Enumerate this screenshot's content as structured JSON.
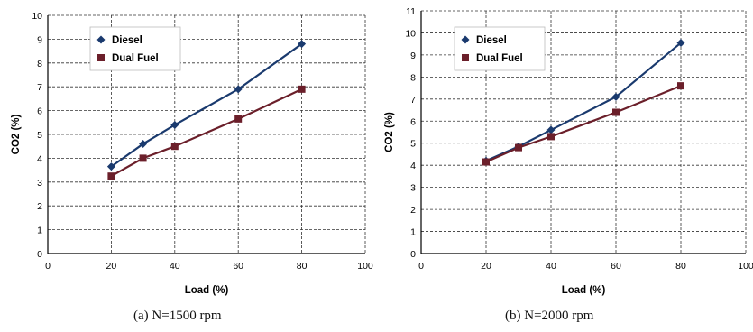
{
  "chart_data": [
    {
      "type": "line",
      "caption": "(a) N=1500 rpm",
      "xlabel": "Load (%)",
      "ylabel": "CO2 (%)",
      "xlim": [
        0,
        100
      ],
      "ylim": [
        0,
        10
      ],
      "xticks": [
        0,
        20,
        40,
        60,
        80,
        100
      ],
      "yticks": [
        0,
        1,
        2,
        3,
        4,
        5,
        6,
        7,
        8,
        9,
        10
      ],
      "grid": true,
      "legend_position": "top-left",
      "x": [
        20,
        30,
        40,
        60,
        80
      ],
      "series": [
        {
          "name": "Diesel",
          "values": [
            3.65,
            4.6,
            5.4,
            6.9,
            8.8
          ],
          "color": "#1a3a6e",
          "marker": "diamond"
        },
        {
          "name": "Dual Fuel",
          "values": [
            3.25,
            4.0,
            4.5,
            5.65,
            6.9
          ],
          "color": "#6b1f2a",
          "marker": "square"
        }
      ]
    },
    {
      "type": "line",
      "caption": "(b) N=2000 rpm",
      "xlabel": "Load (%)",
      "ylabel": "CO2 (%)",
      "xlim": [
        0,
        100
      ],
      "ylim": [
        0,
        11
      ],
      "xticks": [
        0,
        20,
        40,
        60,
        80,
        100
      ],
      "yticks": [
        0,
        1,
        2,
        3,
        4,
        5,
        6,
        7,
        8,
        9,
        10,
        11
      ],
      "grid": true,
      "legend_position": "top-left",
      "x": [
        20,
        30,
        40,
        60,
        80
      ],
      "series": [
        {
          "name": "Diesel",
          "values": [
            4.2,
            4.85,
            5.6,
            7.1,
            9.55
          ],
          "color": "#1a3a6e",
          "marker": "diamond"
        },
        {
          "name": "Dual Fuel",
          "values": [
            4.15,
            4.8,
            5.3,
            6.4,
            7.6
          ],
          "color": "#6b1f2a",
          "marker": "square"
        }
      ]
    }
  ]
}
